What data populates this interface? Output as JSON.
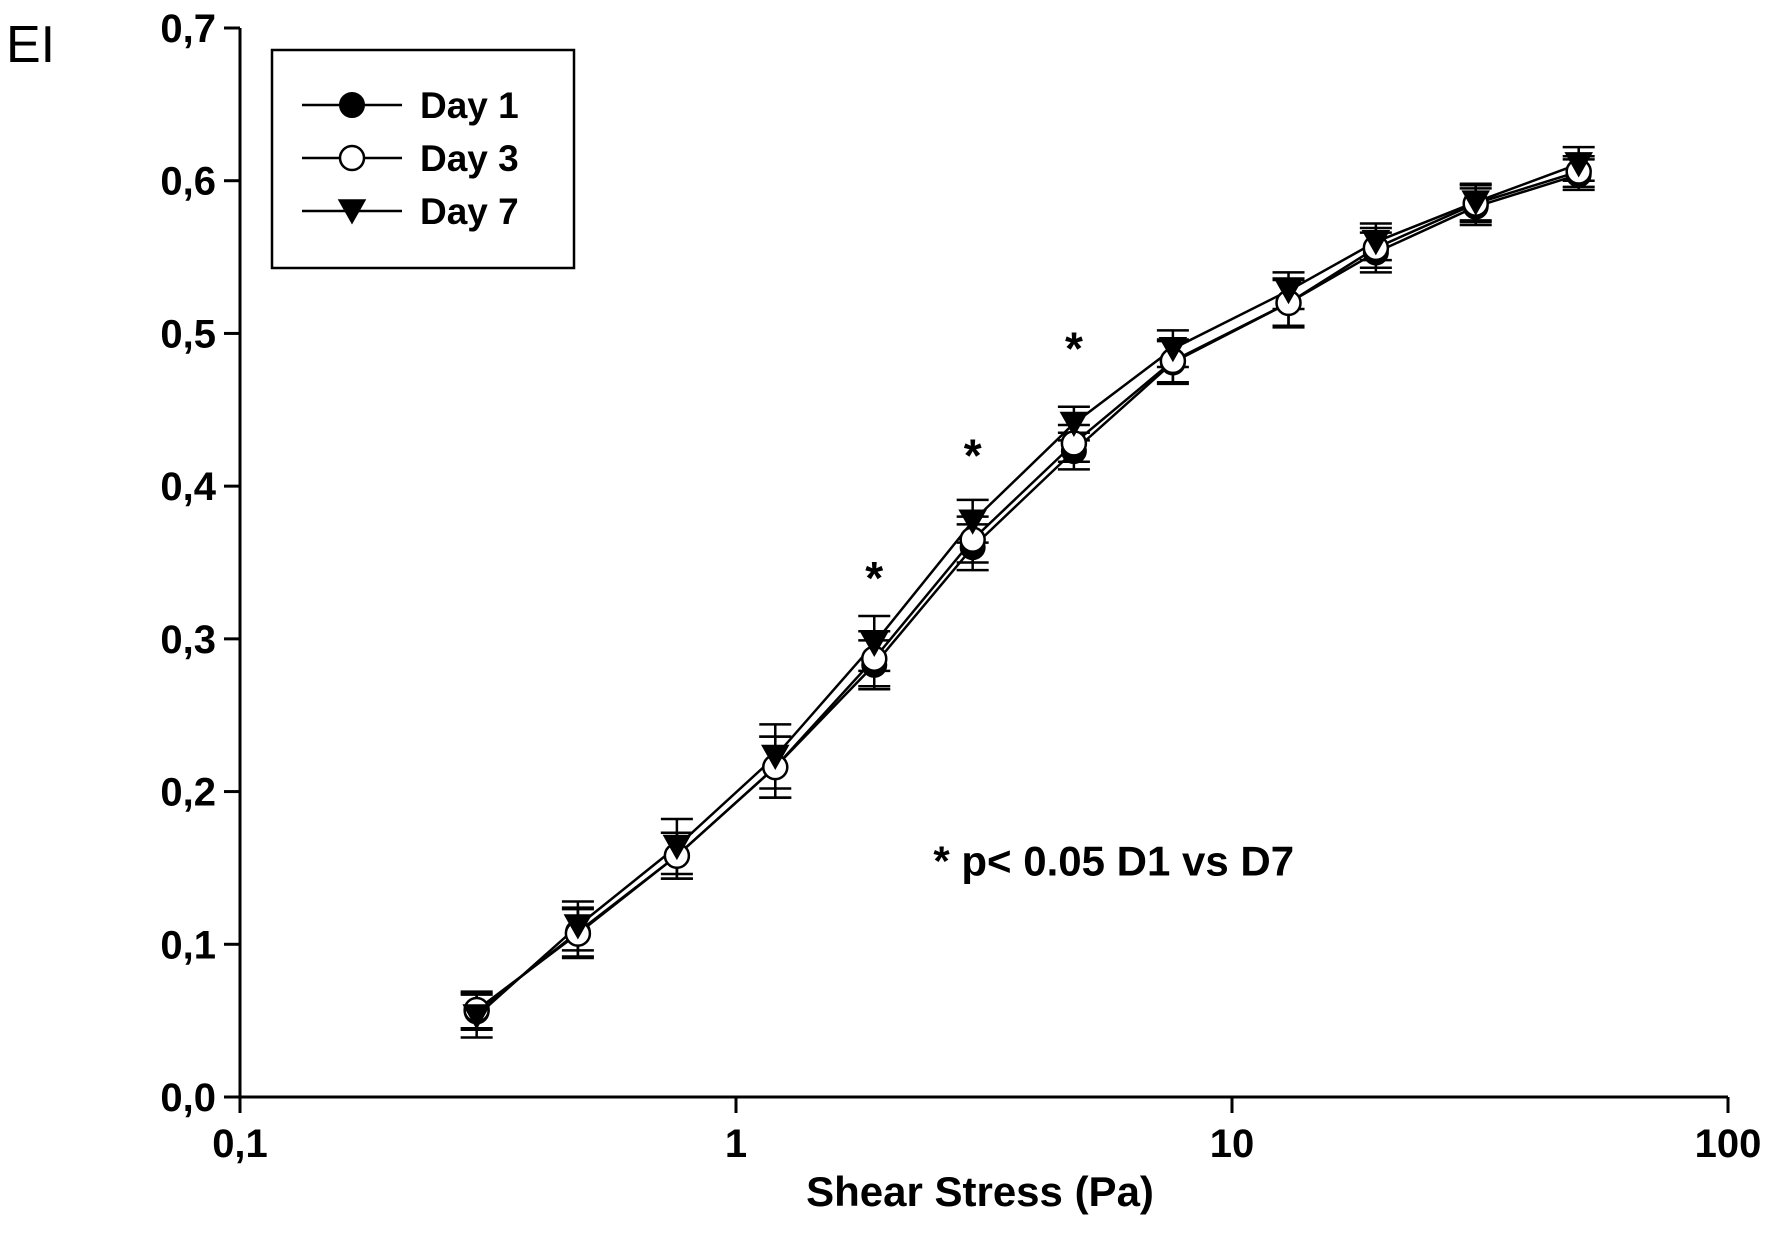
{
  "chart_data": {
    "type": "line",
    "title": "",
    "xlabel": "Shear Stress (Pa)",
    "ylabel": "EI",
    "xscale": "log",
    "xlim": [
      0.1,
      100
    ],
    "ylim": [
      0.0,
      0.7
    ],
    "x_ticks": [
      0.1,
      1,
      10,
      100
    ],
    "x_tick_labels": [
      "0,1",
      "1",
      "10",
      "100"
    ],
    "y_ticks": [
      0.0,
      0.1,
      0.2,
      0.3,
      0.4,
      0.5,
      0.6,
      0.7
    ],
    "y_tick_labels": [
      "0,0",
      "0,1",
      "0,2",
      "0,3",
      "0,4",
      "0,5",
      "0,6",
      "0,7"
    ],
    "x": [
      0.3,
      0.48,
      0.76,
      1.2,
      1.9,
      3.0,
      4.8,
      7.6,
      13.0,
      19.5,
      31.0,
      50.0
    ],
    "series": [
      {
        "name": "Day 1",
        "marker": "filled-circle",
        "values": [
          0.056,
          0.108,
          0.158,
          0.216,
          0.283,
          0.36,
          0.423,
          0.481,
          0.52,
          0.553,
          0.583,
          0.604
        ],
        "errors": [
          0.012,
          0.016,
          0.015,
          0.02,
          0.016,
          0.015,
          0.012,
          0.014,
          0.016,
          0.013,
          0.012,
          0.01
        ]
      },
      {
        "name": "Day 3",
        "marker": "open-circle",
        "values": [
          0.057,
          0.107,
          0.158,
          0.216,
          0.287,
          0.365,
          0.428,
          0.482,
          0.52,
          0.556,
          0.585,
          0.606
        ],
        "errors": [
          0.012,
          0.016,
          0.015,
          0.02,
          0.018,
          0.015,
          0.012,
          0.014,
          0.015,
          0.013,
          0.012,
          0.01
        ]
      },
      {
        "name": "Day 7",
        "marker": "filled-triangle-down",
        "values": [
          0.053,
          0.112,
          0.164,
          0.223,
          0.297,
          0.377,
          0.441,
          0.49,
          0.528,
          0.56,
          0.586,
          0.611
        ],
        "errors": [
          0.014,
          0.016,
          0.018,
          0.021,
          0.018,
          0.014,
          0.011,
          0.012,
          0.012,
          0.012,
          0.012,
          0.011
        ]
      }
    ],
    "legend": {
      "position": "top-left",
      "entries": [
        "Day 1",
        "Day 3",
        "Day 7"
      ]
    },
    "significance": {
      "marker": "*",
      "x": [
        1.9,
        3.0,
        4.8
      ],
      "y": [
        0.34,
        0.42,
        0.49
      ]
    },
    "annotation": "* p< 0.05 D1 vs D7",
    "annotation_pos": [
      2.5,
      0.145
    ]
  }
}
